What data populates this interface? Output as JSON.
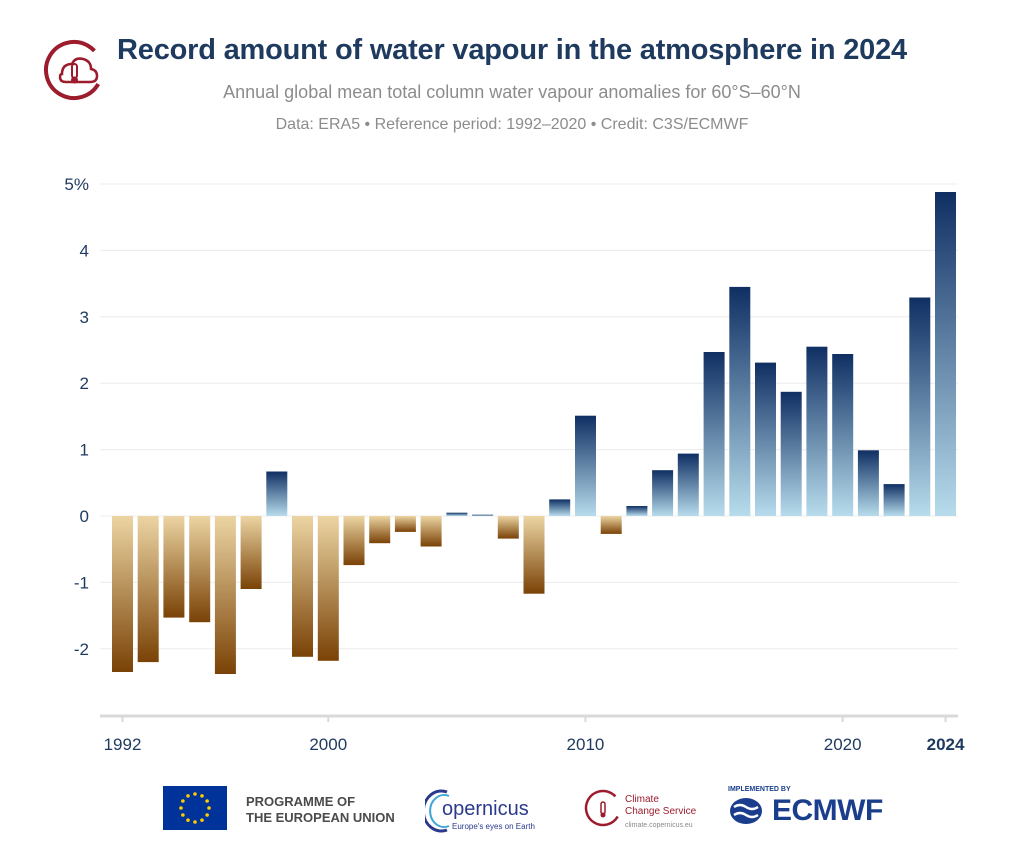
{
  "header": {
    "title": "Record amount of water vapour in the atmosphere in 2024",
    "subtitle": "Annual global mean total column water vapour anomalies for 60°S–60°N",
    "credit": "Data: ERA5 • Reference period: 1992–2020 • Credit: C3S/ECMWF"
  },
  "footer": {
    "eu_line1": "PROGRAMME OF",
    "eu_line2": "THE EUROPEAN UNION",
    "copernicus": "opernicus",
    "copernicus_tag": "Europe's eyes on Earth",
    "c3s_line1": "Climate",
    "c3s_line2": "Change Service",
    "c3s_url": "climate.copernicus.eu",
    "ecmwf_implemented": "IMPLEMENTED BY",
    "ecmwf": "ECMWF"
  },
  "colors": {
    "positive_light": "#b7dcec",
    "positive_dark": "#0f2f63",
    "negative_light": "#ecd5a3",
    "negative_dark": "#7a4206",
    "axis_text": "#1f3a5f"
  },
  "chart_data": {
    "type": "bar",
    "title": "Record amount of water vapour in the atmosphere in 2024",
    "x": [
      1992,
      1993,
      1994,
      1995,
      1996,
      1997,
      1998,
      1999,
      2000,
      2001,
      2002,
      2003,
      2004,
      2005,
      2006,
      2007,
      2008,
      2009,
      2010,
      2011,
      2012,
      2013,
      2014,
      2015,
      2016,
      2017,
      2018,
      2019,
      2020,
      2021,
      2022,
      2023,
      2024
    ],
    "values": [
      -2.35,
      -2.2,
      -1.53,
      -1.6,
      -2.38,
      -1.1,
      0.67,
      -2.12,
      -2.18,
      -0.74,
      -0.41,
      -0.24,
      -0.46,
      0.05,
      0.02,
      -0.34,
      -1.17,
      0.25,
      1.51,
      -0.27,
      0.15,
      0.69,
      0.94,
      2.47,
      3.45,
      2.31,
      1.87,
      2.55,
      2.44,
      0.99,
      0.48,
      3.29,
      4.88
    ],
    "xtick_labels": [
      "1992",
      "2000",
      "2010",
      "2020",
      "2024"
    ],
    "xtick_values": [
      1992,
      2000,
      2010,
      2020,
      2024
    ],
    "ytick_labels": [
      "5%",
      "4",
      "3",
      "2",
      "1",
      "0",
      "-1",
      "-2"
    ],
    "ytick_values": [
      5,
      4,
      3,
      2,
      1,
      0,
      -1,
      -2
    ],
    "ylim": [
      -3,
      5
    ],
    "xlabel": "",
    "ylabel": "",
    "grid": true
  }
}
